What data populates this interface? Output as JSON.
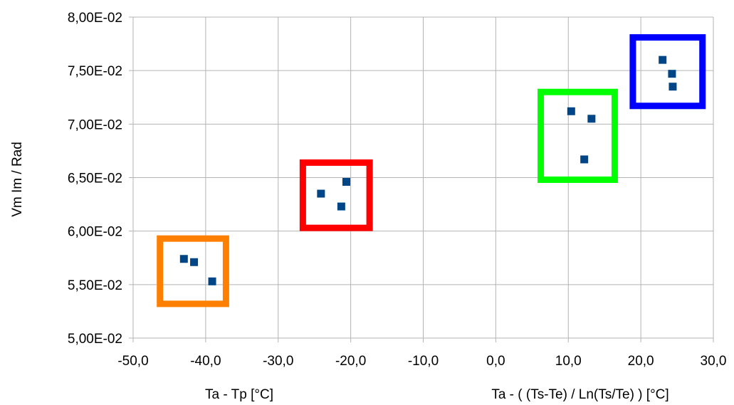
{
  "chart_data": {
    "type": "scatter",
    "title": "",
    "ylabel": "Vm Im / Rad",
    "xlabels": [
      "Ta - Tp [°C]",
      "Ta - ( (Ts-Te) / Ln(Ts/Te) ) [°C]"
    ],
    "xlim": [
      -50,
      30
    ],
    "ylim": [
      0.05,
      0.08
    ],
    "x_ticks": [
      "-50,0",
      "-40,0",
      "-30,0",
      "-20,0",
      "-10,0",
      "0,0",
      "10,0",
      "20,0",
      "30,0"
    ],
    "y_ticks": [
      "5,00E-02",
      "5,50E-02",
      "6,00E-02",
      "6,50E-02",
      "7,00E-02",
      "7,50E-02",
      "8,00E-02"
    ],
    "grid": true,
    "legend": "none",
    "marker_color": "#004586",
    "series": [
      {
        "x": [
          -43.0,
          -41.6,
          -39.1,
          -24.1,
          -21.3,
          -20.6,
          10.4,
          13.2,
          12.2,
          23.0,
          24.3,
          24.4
        ],
        "y": [
          0.0574,
          0.0571,
          0.0553,
          0.0635,
          0.0623,
          0.0646,
          0.0712,
          0.0705,
          0.0667,
          0.076,
          0.0747,
          0.0735
        ]
      }
    ],
    "highlight_boxes": [
      {
        "color": "#ff8000",
        "x": [
          -46.3,
          -37.2
        ],
        "y": [
          0.0532,
          0.0593
        ]
      },
      {
        "color": "#ff0000",
        "x": [
          -26.6,
          -17.4
        ],
        "y": [
          0.0603,
          0.0664
        ]
      },
      {
        "color": "#00ff00",
        "x": [
          6.2,
          16.4
        ],
        "y": [
          0.0648,
          0.073
        ]
      },
      {
        "color": "#0000ff",
        "x": [
          18.9,
          28.5
        ],
        "y": [
          0.0717,
          0.0781
        ]
      }
    ]
  }
}
